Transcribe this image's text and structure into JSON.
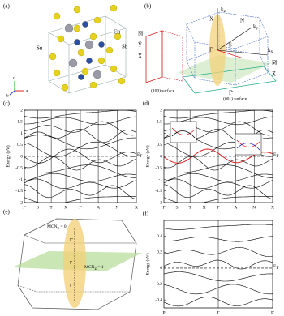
{
  "panels": {
    "a": {
      "label": "(a)",
      "atoms": [
        "Cu",
        "Sn",
        "Sb"
      ],
      "axes": [
        "a",
        "b",
        "c"
      ]
    },
    "b": {
      "label": "(b)",
      "left_points": [
        "M̄",
        "Ȳ",
        "X̄"
      ],
      "right_points": [
        "M̄",
        "X̄"
      ],
      "bottom_point": "Γ̄",
      "bz_points": [
        "Γ",
        "X",
        "N",
        "S"
      ],
      "axes": [
        {
          "main": "k",
          "sub": "z"
        },
        {
          "main": "k",
          "sub": "y"
        },
        {
          "main": "k",
          "sub": "x"
        }
      ],
      "surfaces": [
        "(100) surface",
        "(001) surface"
      ]
    },
    "c": {
      "label": "(c)",
      "y_label": "Energy (eV)",
      "ylim": [
        -2,
        2
      ],
      "yticks": [
        -2,
        -1.5,
        -1,
        -0.5,
        0,
        0.5,
        1,
        1.5,
        2
      ],
      "kpoints": [
        "Γ",
        "S",
        "T",
        "X",
        "Γ",
        "A",
        "N",
        "X"
      ],
      "fermi": {
        "main": "E",
        "sub": "F"
      }
    },
    "d": {
      "label": "(d)",
      "y_label": "Energy (eV)",
      "ylim": [
        -2,
        2
      ],
      "yticks": [
        -2,
        -1.5,
        -1,
        -0.5,
        0,
        0.5,
        1,
        1.5,
        2
      ],
      "kpoints": [
        "Γ",
        "S",
        "T",
        "X",
        "Γ",
        "A",
        "N",
        "X"
      ],
      "fermi": {
        "main": "E",
        "sub": "F"
      }
    },
    "e": {
      "label": "(e)",
      "planes": [
        {
          "main": "MCN",
          "sub": "z",
          "rest": " = 0"
        },
        {
          "main": "MCN",
          "sub": "z",
          "rest": " = 1"
        }
      ],
      "points": [
        "Γ'",
        "Γ",
        "Γ''"
      ]
    },
    "f": {
      "label": "(f)",
      "y_label": "Energy (eV)",
      "ylim": [
        -0.5,
        0.6
      ],
      "yticks": [
        -0.4,
        -0.2,
        0,
        0.2,
        0.4
      ],
      "kpoints": [
        "P",
        "Γ",
        "P'"
      ],
      "fermi": {
        "main": "E",
        "sub": "F"
      }
    }
  }
}
